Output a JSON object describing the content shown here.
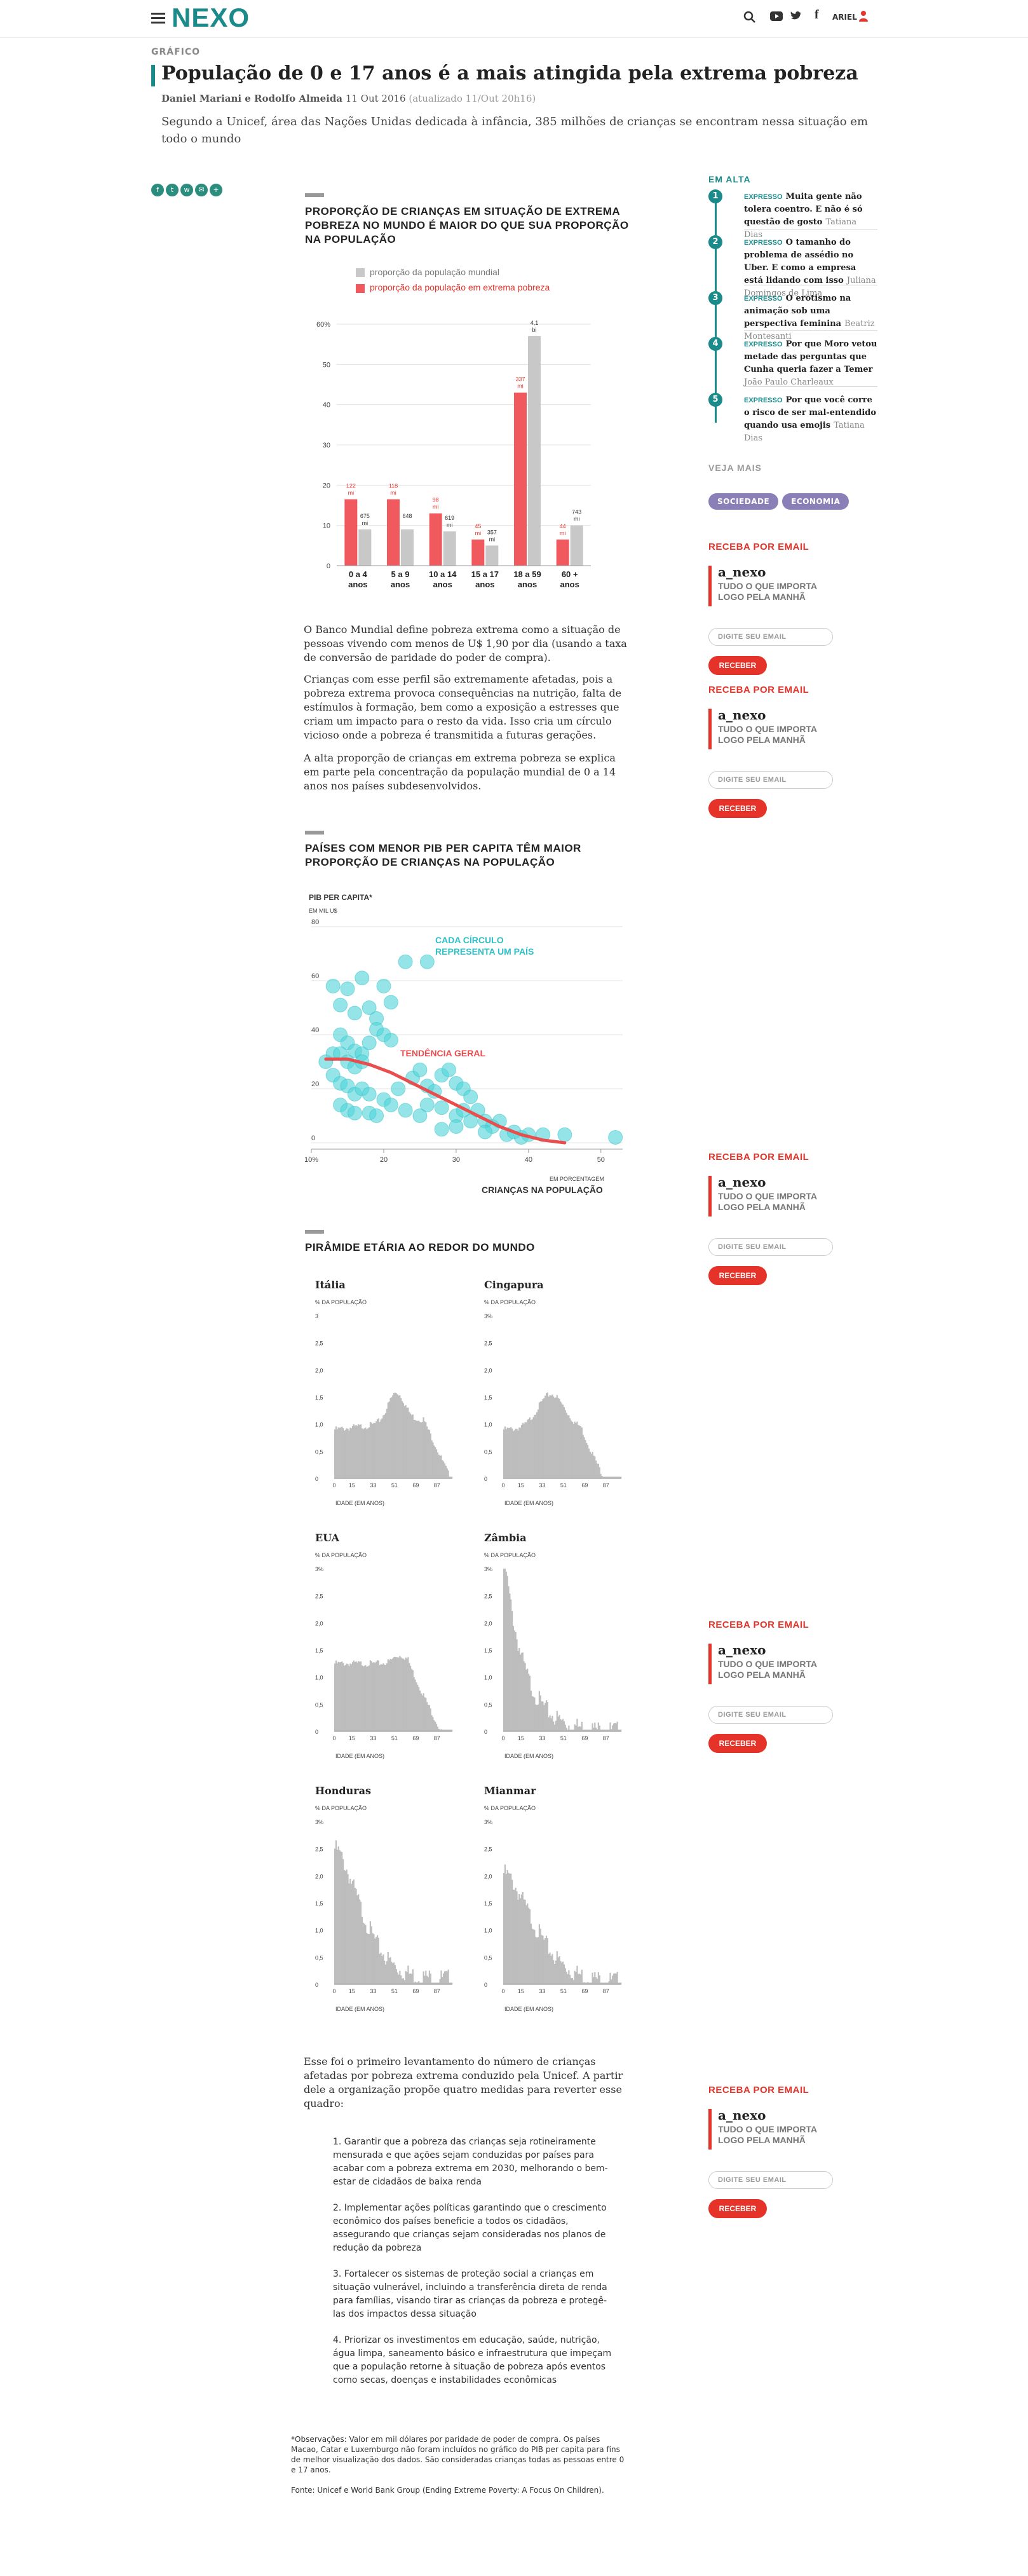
{
  "header": {
    "logo": "NEXO",
    "user": "ARIEL"
  },
  "article": {
    "kicker": "GRÁFICO",
    "title": "População de 0 e 17 anos é a mais atingida pela extrema pobreza",
    "authors": "Daniel Mariani e Rodolfo Almeida",
    "date": "11 Out 2016",
    "updated": "(atualizado 11/Out 20h16)",
    "lead": "Segundo a Unicef, área das Nações Unidas dedicada à infância, 385 milhões de crianças se encontram nessa situação em todo o mundo",
    "p1": "O Banco Mundial define pobreza extrema como a situação de pessoas vivendo com menos de U$ 1,90 por dia (usando a taxa de conversão de paridade do poder de compra).",
    "p2": "Crianças com esse perfil são extremamente afetadas, pois a pobreza extrema provoca consequências na nutrição, falta de estímulos à formação, bem como a exposição a estresses que criam um impacto para o resto da vida. Isso cria um círculo vicioso onde a pobreza é transmitida a futuras gerações.",
    "p3": "A alta proporção de crianças em extrema pobreza se explica em parte pela concentração da população mundial de 0 a 14 anos nos países subdesenvolvidos.",
    "p4": "Esse foi o primeiro levantamento do número de crianças afetadas por pobreza extrema conduzido pela Unicef. A partir dele a organização propõe quatro medidas para reverter esse quadro:",
    "measures": [
      "1. Garantir que a pobreza das crianças seja rotineiramente mensurada e que ações sejam conduzidas por países para acabar com a pobreza extrema em 2030, melhorando o bem-estar de cidadãos de baixa renda",
      "2. Implementar ações políticas garantindo que o crescimento econômico dos países beneficie a todos os cidadãos, assegurando que crianças sejam consideradas nos planos de redução da pobreza",
      "3. Fortalecer os sistemas de proteção social a crianças em situação vulnerável, incluindo a transferência direta de renda para famílias, visando tirar as crianças da pobreza e protegê-las dos impactos dessa situação",
      "4. Priorizar os investimentos em educação, saúde, nutrição, água limpa, saneamento básico e infraestrutura que impeçam que a população retorne à situação de pobreza após eventos como secas, doenças e instabilidades econômicas"
    ],
    "obs": "*Observações: Valor em mil dólares por paridade de poder de compra. Os países Macao, Catar e Luxemburgo não foram incluídos no gráfico do PIB per capita para fins de melhor visualização dos dados. São consideradas crianças todas as pessoas entre 0 e 17 anos.",
    "source": "Fonte: Unicef e World Bank Group (Ending Extreme Poverty: A Focus On Children)."
  },
  "sidebar": {
    "trending_title": "EM ALTA",
    "trending": [
      {
        "n": "1",
        "tag": "EXPRESSO",
        "title": "Muita gente não tolera coentro. E não é só questão de gosto",
        "author": "Tatiana Dias"
      },
      {
        "n": "2",
        "tag": "EXPRESSO",
        "title": "O tamanho do problema de assédio no Uber. E como a empresa está lidando com isso",
        "author": "Juliana Domingos de Lima"
      },
      {
        "n": "3",
        "tag": "EXPRESSO",
        "title": "O erotismo na animação sob uma perspectiva feminina",
        "author": "Beatriz Montesanti"
      },
      {
        "n": "4",
        "tag": "EXPRESSO",
        "title": "Por que Moro vetou metade das perguntas que Cunha queria fazer a Temer",
        "author": "João Paulo Charleaux"
      },
      {
        "n": "5",
        "tag": "EXPRESSO",
        "title": "Por que você corre o risco de ser mal-entendido quando usa emojis",
        "author": "Tatiana Dias"
      }
    ],
    "see_more": "VEJA MAIS",
    "tags": [
      "SOCIEDADE",
      "ECONOMIA"
    ],
    "newsletter": {
      "heading": "RECEBA POR EMAIL",
      "name": "a_nexo",
      "desc": "TUDO O QUE IMPORTA LOGO PELA MANHÃ",
      "placeholder": "DIGITE SEU EMAIL",
      "button": "RECEBER"
    }
  },
  "chart_data": [
    {
      "type": "bar",
      "title": "PROPORÇÃO DE CRIANÇAS EM SITUAÇÃO DE EXTREMA POBREZA NO MUNDO É MAIOR DO QUE SUA PROPORÇÃO NA POPULAÇÃO",
      "categories": [
        "0 a 4 anos",
        "5 a 9 anos",
        "10 a 14 anos",
        "15 a 17 anos",
        "18 a 59 anos",
        "60 + anos"
      ],
      "series": [
        {
          "name": "proporção da população mundial",
          "color": "#c8c8c8",
          "values": [
            9,
            9,
            8.5,
            5,
            57,
            10
          ],
          "labels": [
            "675 mi",
            "648",
            "619 mi",
            "357 mi",
            "4,1 bi",
            "743 mi"
          ]
        },
        {
          "name": "proporção da população em extrema pobreza",
          "color": "#f05a5f",
          "values": [
            16.5,
            16.5,
            13,
            6.5,
            43,
            6.5
          ],
          "labels": [
            "122 mi",
            "118 mi",
            "98 mi",
            "45 mi",
            "337 mi",
            "44 mi"
          ]
        }
      ],
      "y_ticks": [
        "0",
        "10",
        "20",
        "30",
        "40",
        "50",
        "60%"
      ],
      "ylim": [
        0,
        60
      ]
    },
    {
      "type": "scatter",
      "title": "PAÍSES COM MENOR PIB PER CAPITA TÊM MAIOR PROPORÇÃO DE CRIANÇAS NA POPULAÇÃO",
      "ylabel": "PIB PER CAPITA*",
      "yunit": "EM MIL U$",
      "xlabel": "CRIANÇAS NA POPULAÇÃO",
      "xunit": "EM PORCENTAGEM",
      "x_ticks": [
        "10%",
        "20",
        "30",
        "40",
        "50"
      ],
      "y_ticks": [
        "0",
        "20",
        "40",
        "60",
        "80"
      ],
      "xlim": [
        10,
        53
      ],
      "ylim": [
        0,
        80
      ],
      "annotation_points": "CADA CÍRCULO REPRESENTA UM PAÍS",
      "annotation_trend": "TENDÊNCIA GERAL",
      "points": [
        [
          14,
          51
        ],
        [
          15,
          57
        ],
        [
          16,
          48
        ],
        [
          13,
          58
        ],
        [
          17,
          61
        ],
        [
          18,
          50
        ],
        [
          19,
          46
        ],
        [
          20,
          58
        ],
        [
          21,
          52
        ],
        [
          23,
          67
        ],
        [
          26,
          67
        ],
        [
          14,
          40
        ],
        [
          15,
          37
        ],
        [
          16,
          34
        ],
        [
          17,
          33
        ],
        [
          18,
          37
        ],
        [
          19,
          42
        ],
        [
          20,
          40
        ],
        [
          21,
          38
        ],
        [
          12,
          30
        ],
        [
          13,
          33
        ],
        [
          14,
          33
        ],
        [
          15,
          30
        ],
        [
          16,
          28
        ],
        [
          17,
          30
        ],
        [
          13,
          25
        ],
        [
          14,
          22
        ],
        [
          15,
          21
        ],
        [
          16,
          18
        ],
        [
          17,
          20
        ],
        [
          18,
          18
        ],
        [
          20,
          16
        ],
        [
          22,
          20
        ],
        [
          24,
          24
        ],
        [
          25,
          27
        ],
        [
          26,
          21
        ],
        [
          27,
          19
        ],
        [
          28,
          25
        ],
        [
          29,
          27
        ],
        [
          30,
          22
        ],
        [
          31,
          20
        ],
        [
          32,
          17
        ],
        [
          14,
          14
        ],
        [
          15,
          12
        ],
        [
          16,
          11
        ],
        [
          18,
          11
        ],
        [
          19,
          10
        ],
        [
          21,
          14
        ],
        [
          23,
          12
        ],
        [
          25,
          10
        ],
        [
          26,
          14
        ],
        [
          28,
          13
        ],
        [
          30,
          10
        ],
        [
          31,
          12
        ],
        [
          32,
          8
        ],
        [
          33,
          12
        ],
        [
          34,
          8
        ],
        [
          35,
          6
        ],
        [
          36,
          8
        ],
        [
          37,
          3
        ],
        [
          38,
          4
        ],
        [
          39,
          2
        ],
        [
          40,
          3
        ],
        [
          42,
          3
        ],
        [
          45,
          3
        ],
        [
          34,
          4
        ],
        [
          30,
          6
        ],
        [
          28,
          5
        ],
        [
          52,
          2
        ]
      ],
      "trend": [
        [
          12,
          31
        ],
        [
          15,
          31
        ],
        [
          18,
          29
        ],
        [
          21,
          26
        ],
        [
          24,
          22
        ],
        [
          27,
          18
        ],
        [
          30,
          14
        ],
        [
          33,
          10
        ],
        [
          36,
          6
        ],
        [
          39,
          3
        ],
        [
          42,
          1
        ],
        [
          45,
          0
        ]
      ]
    },
    {
      "type": "area",
      "title": "PIRÂMIDE ETÁRIA AO REDOR DO MUNDO",
      "xlabel": "IDADE (EM ANOS)",
      "ylabel": "% DA POPULAÇÃO",
      "x_ticks": [
        "0",
        "15",
        "33",
        "51",
        "69",
        "87"
      ],
      "y_ticks": [
        "0",
        "0,5",
        "1,0",
        "1,5",
        "2,0",
        "2,5",
        "3%"
      ],
      "panels": [
        {
          "name": "Itália",
          "y_top": "3",
          "profile": "italy"
        },
        {
          "name": "Cingapura",
          "y_top": "3%",
          "profile": "singapore"
        },
        {
          "name": "EUA",
          "y_top": "3%",
          "profile": "usa"
        },
        {
          "name": "Zâmbia",
          "y_top": "3%",
          "profile": "zambia"
        },
        {
          "name": "Honduras",
          "y_top": "3%",
          "profile": "honduras"
        },
        {
          "name": "Mianmar",
          "y_top": "3%",
          "profile": "myanmar"
        }
      ]
    }
  ]
}
